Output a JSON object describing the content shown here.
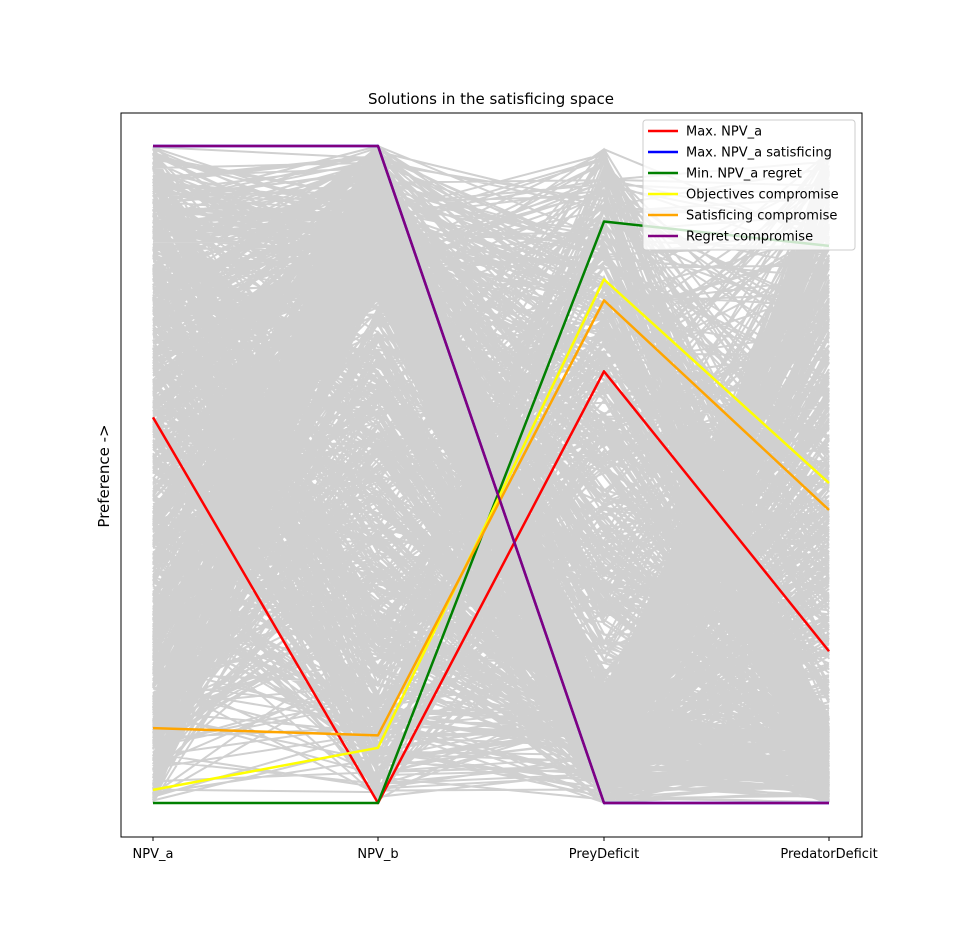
{
  "chart_data": {
    "type": "parallel-coordinates",
    "title": "Solutions in the satisficing space",
    "ylabel": "Preference ->",
    "axes": [
      "NPV_a",
      "NPV_b",
      "PreyDeficit",
      "PredatorDeficit"
    ],
    "ylim": [
      0,
      1
    ],
    "grid": false,
    "legend_placement": "top-right",
    "background_color": "#d0d0d0",
    "series": [
      {
        "name": "Max. NPV_a",
        "color": "#ff0000",
        "values": [
          0.587,
          0.0,
          0.657,
          0.231
        ]
      },
      {
        "name": "Max. NPV_a satisficing",
        "color": "#0000ff",
        "values": [
          1.0,
          1.0,
          0.0,
          0.0
        ]
      },
      {
        "name": "Min. NPV_a regret",
        "color": "#008000",
        "values": [
          0.0,
          0.0,
          0.885,
          0.848
        ]
      },
      {
        "name": "Objectives compromise",
        "color": "#ffff00",
        "values": [
          0.02,
          0.084,
          0.797,
          0.487
        ]
      },
      {
        "name": "Satisficing compromise",
        "color": "#ffa500",
        "values": [
          0.114,
          0.103,
          0.765,
          0.446
        ]
      },
      {
        "name": "Regret compromise",
        "color": "#800080",
        "values": [
          1.0,
          1.0,
          0.0,
          0.0
        ]
      }
    ]
  }
}
